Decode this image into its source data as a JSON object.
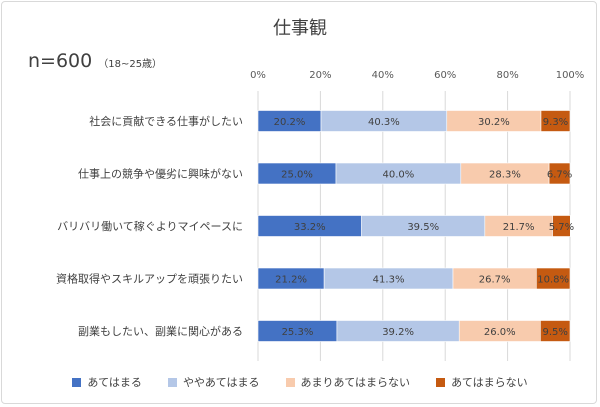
{
  "chart_data": {
    "type": "bar",
    "orientation": "horizontal",
    "stacked": true,
    "title": "仕事観",
    "sample": {
      "main": "n=600",
      "sub": "（18~25歳）"
    },
    "categories": [
      "社会に貢献できる仕事がしたい",
      "仕事上の競争や優劣に興味がない",
      "バリバリ働いて稼ぐよりマイペースに",
      "資格取得やスキルアップを頑張りたい",
      "副業もしたい、副業に関心がある"
    ],
    "series": [
      {
        "name": "あてはまる",
        "color": "#4472c4",
        "values": [
          20.2,
          25.0,
          33.2,
          21.2,
          25.3
        ],
        "labels": [
          "20.2%",
          "25.0%",
          "33.2%",
          "21.2%",
          "25.3%"
        ]
      },
      {
        "name": "ややあてはまる",
        "color": "#b4c7e7",
        "values": [
          40.3,
          40.0,
          39.5,
          41.3,
          39.2
        ],
        "labels": [
          "40.3%",
          "40.0%",
          "39.5%",
          "41.3%",
          "39.2%"
        ]
      },
      {
        "name": "あまりあてはまらない",
        "color": "#f8cbad",
        "values": [
          30.2,
          28.3,
          21.7,
          26.7,
          26.0
        ],
        "labels": [
          "30.2%",
          "28.3%",
          "21.7%",
          "26.7%",
          "26.0%"
        ]
      },
      {
        "name": "あてはまらない",
        "color": "#c55a11",
        "values": [
          9.3,
          6.7,
          5.7,
          10.8,
          9.5
        ],
        "labels": [
          "9.3%",
          "6.7%",
          "5.7%",
          "10.8%",
          "9.5%"
        ]
      }
    ],
    "xlim": [
      0,
      100
    ],
    "xticks": [
      "0%",
      "20%",
      "40%",
      "60%",
      "80%",
      "100%"
    ],
    "grid": true,
    "legend": "bottom"
  }
}
